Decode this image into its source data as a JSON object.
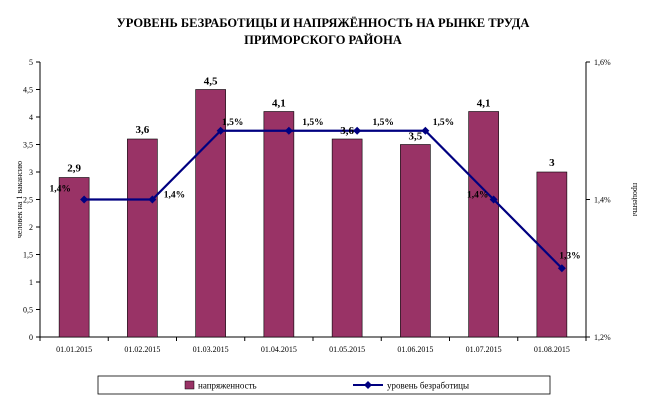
{
  "title_line1": "УРОВЕНЬ БЕЗРАБОТИЦЫ И НАПРЯЖЁННОСТЬ НА РЫНКЕ ТРУДА",
  "title_line2": "ПРИМОРСКОГО РАЙОНА",
  "colors": {
    "bar": "#993366",
    "line": "#000080",
    "axis": "#000000"
  },
  "chart_data": {
    "type": "bar",
    "categories": [
      "01.01.2015",
      "01.02.2015",
      "01.03.2015",
      "01.04.2015",
      "01.05.2015",
      "01.06.2015",
      "01.07.2015",
      "01.08.2015"
    ],
    "series": [
      {
        "name": "напряженность",
        "type": "bar",
        "axis": "left",
        "values": [
          2.9,
          3.6,
          4.5,
          4.1,
          3.6,
          3.5,
          4.1,
          3.0
        ],
        "labels": [
          "2,9",
          "3,6",
          "4,5",
          "4,1",
          "3,6",
          "3,5",
          "4,1",
          "3"
        ]
      },
      {
        "name": "уровень безработицы",
        "type": "line",
        "axis": "right",
        "values": [
          1.4,
          1.4,
          1.5,
          1.5,
          1.5,
          1.5,
          1.4,
          1.3
        ],
        "labels": [
          "1,4%",
          "1,4%",
          "1,5%",
          "1,5%",
          "1,5%",
          "1,5%",
          "1,4%",
          "1,3%"
        ]
      }
    ],
    "y_left": {
      "label": "человек на 1 вакансию",
      "range": [
        0,
        5
      ],
      "ticks": [
        "0",
        "0,5",
        "1",
        "1,5",
        "2",
        "2,5",
        "3",
        "3,5",
        "4",
        "4,5",
        "5"
      ],
      "tick_values": [
        0,
        0.5,
        1,
        1.5,
        2,
        2.5,
        3,
        3.5,
        4,
        4.5,
        5
      ]
    },
    "y_right": {
      "label": "проценты",
      "range": [
        1.2,
        1.6
      ],
      "ticks": [
        "1,2%",
        "1,4%",
        "1,6%"
      ],
      "tick_values": [
        1.2,
        1.4,
        1.6
      ]
    },
    "grid": false,
    "legend": "bottom"
  }
}
